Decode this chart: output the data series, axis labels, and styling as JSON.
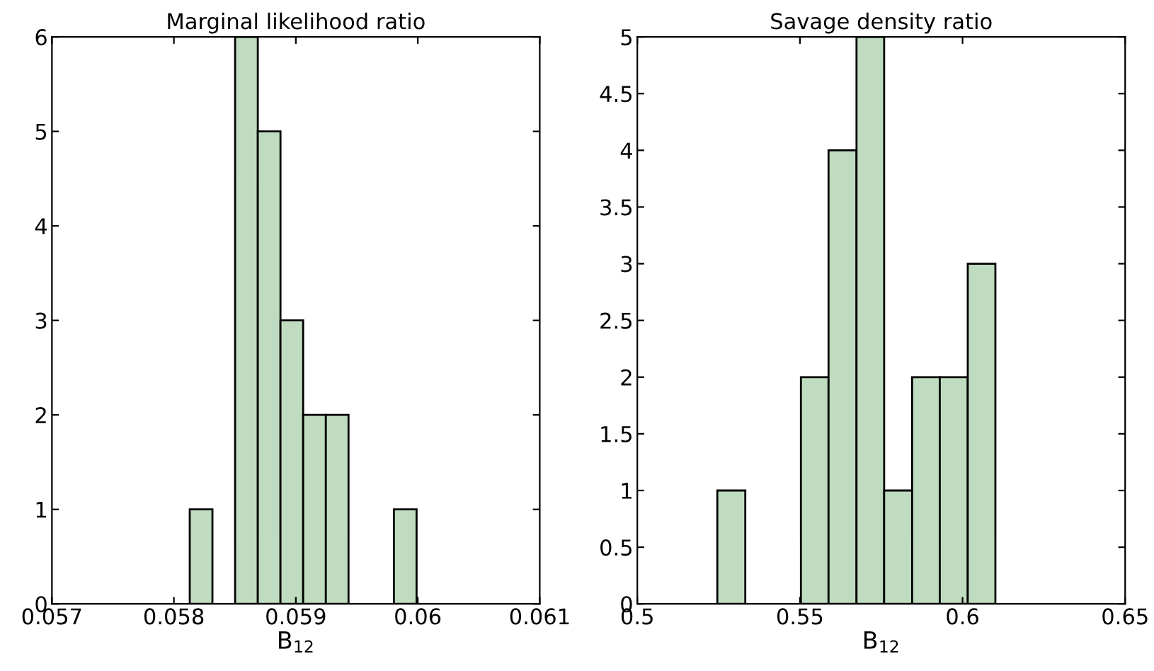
{
  "chart_data": [
    {
      "type": "histogram",
      "title": "Marginal likelihood ratio",
      "xlabel": "B$_{12}$",
      "color": "#c0dcc0",
      "bins": [
        0.05813,
        0.058316,
        0.058502,
        0.058688,
        0.058874,
        0.05906,
        0.059246,
        0.059432,
        0.059618,
        0.059804,
        0.05999
      ],
      "values": [
        1,
        0,
        6,
        5,
        3,
        2,
        2,
        0,
        0,
        1
      ],
      "xlim": [
        0.057,
        0.061
      ],
      "xticks": [
        0.057,
        0.058,
        0.059,
        0.06,
        0.061
      ],
      "ylim": [
        0,
        6
      ],
      "yticks": [
        0,
        1,
        2,
        3,
        4,
        5,
        6
      ],
      "grid": false
    },
    {
      "type": "histogram",
      "title": "Savage density ratio",
      "xlabel": "B$_{12}$",
      "color": "#c0dcc0",
      "bins": [
        0.5246,
        0.5332,
        0.5417,
        0.5503,
        0.5588,
        0.5674,
        0.5759,
        0.5845,
        0.593,
        0.6016,
        0.6101
      ],
      "values": [
        1,
        0,
        0,
        2,
        4,
        5,
        1,
        2,
        2,
        3
      ],
      "xlim": [
        0.5,
        0.65
      ],
      "xticks": [
        0.5,
        0.55,
        0.6,
        0.65
      ],
      "ylim": [
        0,
        5
      ],
      "yticks": [
        0,
        0.5,
        1,
        1.5,
        2,
        2.5,
        3,
        3.5,
        4,
        4.5,
        5
      ],
      "grid": false
    }
  ]
}
